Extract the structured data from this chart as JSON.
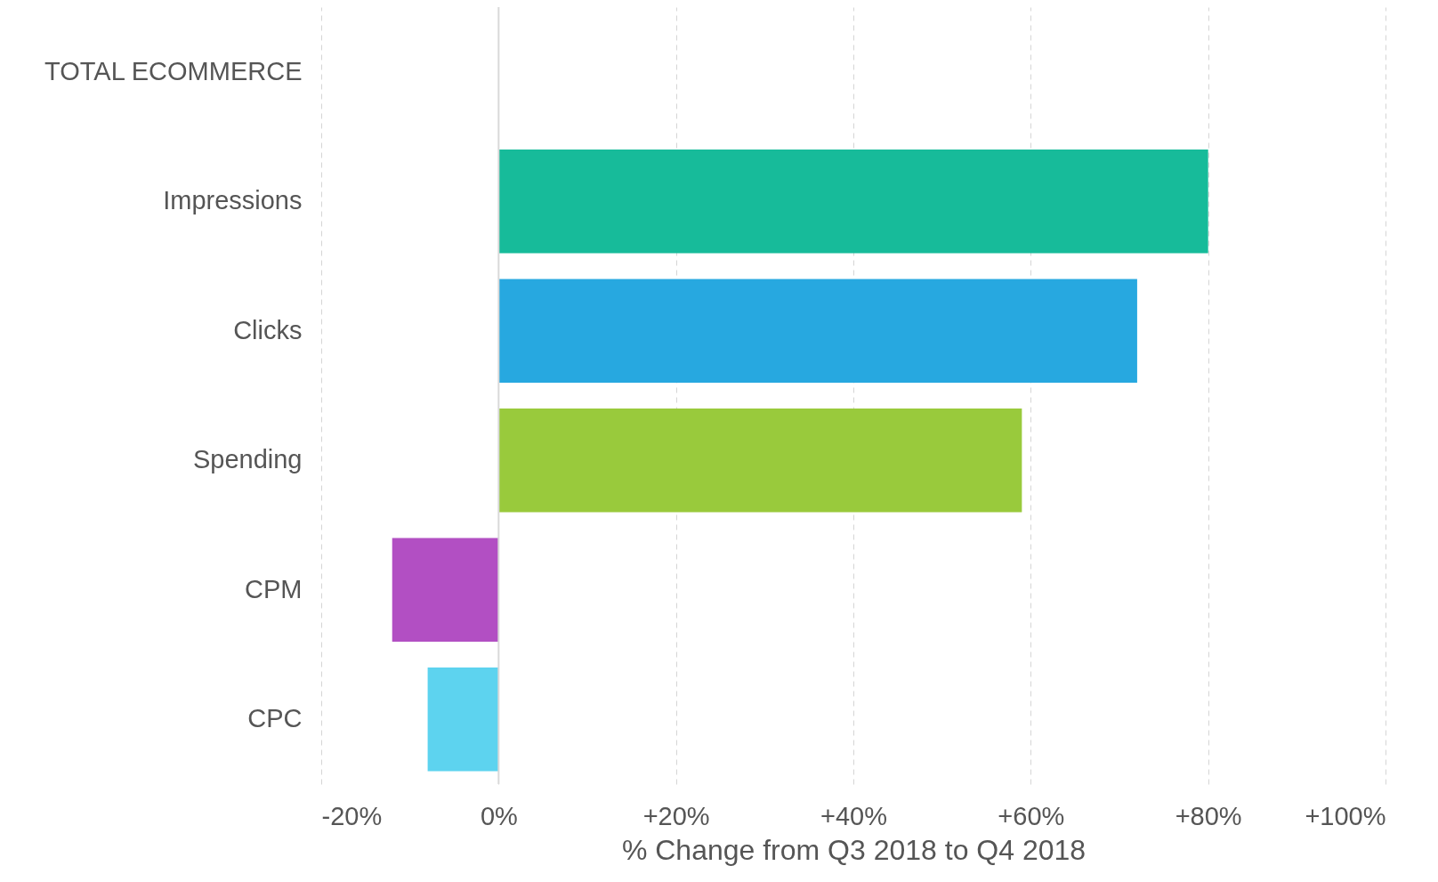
{
  "chart_data": {
    "type": "bar",
    "orientation": "horizontal",
    "categories": [
      "TOTAL ECOMMERCE",
      "Impressions",
      "Clicks",
      "Spending",
      "CPM",
      "CPC"
    ],
    "values": [
      null,
      80,
      72,
      59,
      -12,
      -8
    ],
    "colors": [
      "#17bb9a",
      "#17bb9a",
      "#27a8e0",
      "#99ca3c",
      "#b24fc3",
      "#5dd3ef"
    ],
    "xlabel": "% Change from Q3 2018 to Q4 2018",
    "xlim": [
      -20,
      100
    ],
    "xticks": [
      {
        "value": -20,
        "label": "-20%"
      },
      {
        "value": 0,
        "label": "0%"
      },
      {
        "value": 20,
        "label": "+20%"
      },
      {
        "value": 40,
        "label": "+40%"
      },
      {
        "value": 60,
        "label": "+60%"
      },
      {
        "value": 80,
        "label": "+80%"
      },
      {
        "value": 100,
        "label": "+100%"
      }
    ],
    "ref_lines": [
      {
        "axis": "x",
        "value": 0,
        "color": "#d9d9d9"
      }
    ],
    "grid": "x"
  }
}
